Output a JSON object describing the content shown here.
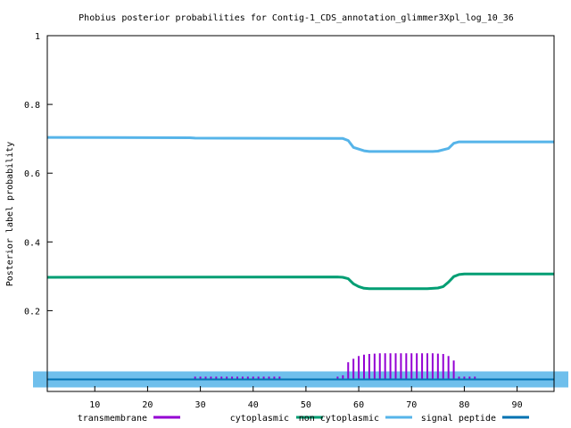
{
  "chart_data": {
    "type": "line",
    "title": "Phobius posterior probabilities for Contig-1_CDS_annotation_glimmer3Xpl_log_10_36",
    "xlabel": "",
    "ylabel": "Posterior label probability",
    "xlim": [
      1,
      97
    ],
    "ylim": [
      -0.035,
      1
    ],
    "x_ticks": [
      10,
      20,
      30,
      40,
      50,
      60,
      70,
      80,
      90
    ],
    "y_ticks": [
      0.2,
      0.4,
      0.6,
      0.8,
      1
    ],
    "y_tick_labels": [
      "0.2",
      "0.4",
      "0.6",
      "0.8",
      "1"
    ],
    "grid": false,
    "legend_position": "bottom",
    "colors": {
      "transmembrane": "#9400d3",
      "cytoplasmic": "#009e73",
      "non_cytoplasmic": "#56b4e9",
      "signal_peptide": "#0072b2"
    },
    "legend": [
      {
        "label": "transmembrane",
        "color": "#9400d3"
      },
      {
        "label": "cytoplasmic",
        "color": "#009e73"
      },
      {
        "label": "non cytoplasmic",
        "color": "#56b4e9"
      },
      {
        "label": "signal peptide",
        "color": "#0072b2"
      }
    ],
    "series": [
      {
        "name": "non cytoplasmic",
        "style": "line",
        "points": [
          [
            1,
            0.704
          ],
          [
            28,
            0.703
          ],
          [
            29,
            0.702
          ],
          [
            57,
            0.701
          ],
          [
            58,
            0.695
          ],
          [
            59,
            0.675
          ],
          [
            60,
            0.67
          ],
          [
            61,
            0.665
          ],
          [
            62,
            0.663
          ],
          [
            74,
            0.663
          ],
          [
            75,
            0.664
          ],
          [
            77,
            0.672
          ],
          [
            78,
            0.687
          ],
          [
            79,
            0.691
          ],
          [
            97,
            0.691
          ]
        ]
      },
      {
        "name": "cytoplasmic",
        "style": "line",
        "points": [
          [
            1,
            0.297
          ],
          [
            56,
            0.298
          ],
          [
            57,
            0.297
          ],
          [
            58,
            0.293
          ],
          [
            59,
            0.278
          ],
          [
            60,
            0.27
          ],
          [
            61,
            0.265
          ],
          [
            62,
            0.264
          ],
          [
            73,
            0.264
          ],
          [
            75,
            0.266
          ],
          [
            76,
            0.27
          ],
          [
            77,
            0.283
          ],
          [
            78,
            0.299
          ],
          [
            79,
            0.305
          ],
          [
            80,
            0.307
          ],
          [
            97,
            0.307
          ]
        ]
      },
      {
        "name": "transmembrane",
        "style": "impulses",
        "x": [
          29,
          30,
          31,
          32,
          33,
          34,
          35,
          36,
          37,
          38,
          39,
          40,
          41,
          42,
          43,
          44,
          45,
          56,
          57,
          58,
          59,
          60,
          61,
          62,
          63,
          64,
          65,
          66,
          67,
          68,
          69,
          70,
          71,
          72,
          73,
          74,
          75,
          76,
          77,
          78,
          79,
          80,
          81,
          82
        ],
        "values": [
          0.008,
          0.008,
          0.008,
          0.008,
          0.008,
          0.008,
          0.008,
          0.008,
          0.008,
          0.008,
          0.008,
          0.008,
          0.008,
          0.008,
          0.008,
          0.008,
          0.008,
          0.008,
          0.012,
          0.05,
          0.06,
          0.068,
          0.072,
          0.074,
          0.075,
          0.076,
          0.076,
          0.076,
          0.076,
          0.076,
          0.076,
          0.076,
          0.076,
          0.076,
          0.076,
          0.076,
          0.075,
          0.074,
          0.068,
          0.055,
          0.008,
          0.008,
          0.008,
          0.008
        ]
      },
      {
        "name": "signal peptide",
        "style": "line",
        "points": [
          [
            1,
            0
          ],
          [
            97,
            0
          ]
        ]
      }
    ]
  }
}
